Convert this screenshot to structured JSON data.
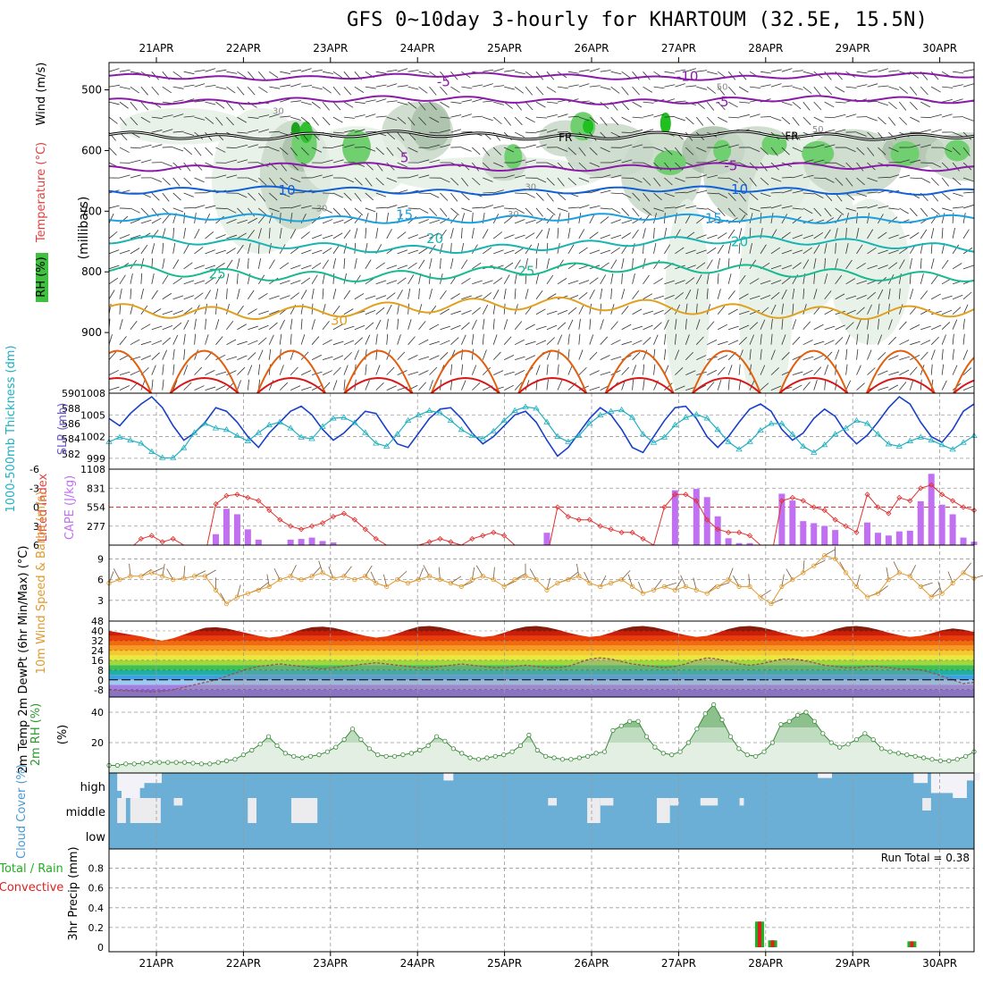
{
  "title": "GFS 0~10day 3-hourly for KHARTOUM (32.5E, 15.5N)",
  "dates": [
    "21APR",
    "22APR",
    "23APR",
    "24APR",
    "25APR",
    "26APR",
    "27APR",
    "28APR",
    "29APR",
    "30APR"
  ],
  "colors": {
    "purple": "#8a1aa8",
    "blue": "#1060d8",
    "sky": "#1a9fe0",
    "teal": "#18b4b4",
    "seagreen": "#18b890",
    "gold": "#e0a020",
    "orange": "#e06010",
    "red": "#d81818",
    "cape": "#c070f0",
    "li": "#e03030",
    "wind10": "#e09a30",
    "rh2": "#3a8a3a",
    "cloud": "#6baed6",
    "precip_total": "#20b020",
    "precip_conv": "#e02020",
    "slp": "#1a40c8",
    "thick": "#20b0c0"
  },
  "panel1": {
    "ylabels": [
      "Wind (m/s)",
      "Temperature (°C)",
      "(millibars)",
      "RH (%)"
    ],
    "yticks": [
      500,
      600,
      700,
      800,
      900,
      1000
    ],
    "isotherm_labels": [
      {
        "text": "-10",
        "t": 6.1,
        "p": 478
      },
      {
        "text": "-5",
        "t": 3.3,
        "p": 487
      },
      {
        "text": "-5",
        "t": 6.5,
        "p": 520
      },
      {
        "text": "5",
        "t": 2.85,
        "p": 612
      },
      {
        "text": "-5",
        "t": 6.6,
        "p": 625
      },
      {
        "text": "10",
        "t": 1.5,
        "p": 666
      },
      {
        "text": "10",
        "t": 6.7,
        "p": 664
      },
      {
        "text": "15",
        "t": 2.85,
        "p": 706
      },
      {
        "text": "15",
        "t": 6.4,
        "p": 712
      },
      {
        "text": "20",
        "t": 3.2,
        "p": 745
      },
      {
        "text": "20",
        "t": 6.7,
        "p": 750
      },
      {
        "text": "25",
        "t": 0.7,
        "p": 803
      },
      {
        "text": "25",
        "t": 4.25,
        "p": 799
      },
      {
        "text": "30",
        "t": 2.1,
        "p": 880
      }
    ],
    "fr_labels": [
      {
        "text": "FR",
        "t": 4.7,
        "p": 577
      },
      {
        "text": "FR",
        "t": 7.3,
        "p": 575
      }
    ],
    "rh_labels": [
      "30",
      "50"
    ]
  },
  "panel2": {
    "ylabel_thick": "1000-500mb Thickness (dm)",
    "ylabel_slp": "SLP (mb)",
    "thick_ticks": [
      "590",
      "588",
      "586",
      "584",
      "582"
    ],
    "slp_ticks": [
      "1008",
      "1005",
      "1002",
      "999"
    ],
    "slp": [
      1004.5,
      1003.5,
      1005.2,
      1006.5,
      1007.5,
      1006,
      1003.5,
      1001.5,
      1002.5,
      1004,
      1006,
      1005.5,
      1004,
      1002,
      1000.5,
      1002.5,
      1004,
      1005.5,
      1006.2,
      1005,
      1003,
      1001.5,
      1002.5,
      1004,
      1005.5,
      1005.2,
      1003,
      1001,
      1000.5,
      1002.5,
      1004.5,
      1005.8,
      1006,
      1004.5,
      1002.5,
      1001,
      1002,
      1003.5,
      1005,
      1005.5,
      1004,
      1001.5,
      999.3,
      1000.5,
      1002.5,
      1004.5,
      1006,
      1005,
      1003,
      1000.5,
      999.8,
      1002,
      1004.2,
      1006,
      1006.2,
      1004.5,
      1002,
      1000.5,
      1002,
      1004,
      1005.8,
      1006.5,
      1005.5,
      1003,
      1001.5,
      1002.5,
      1004.5,
      1005.8,
      1004.8,
      1002.5,
      1001,
      1002.2,
      1004,
      1006,
      1007.5,
      1006.5,
      1004,
      1002,
      1001.2,
      1003,
      1005.5,
      1006.5
    ],
    "thickness": [
      583.6,
      584.2,
      583.8,
      583.4,
      582.3,
      581.5,
      581.5,
      582.8,
      584.8,
      586.0,
      585.4,
      585.2,
      584.4,
      583.7,
      584.8,
      585.8,
      586.2,
      585.4,
      584.2,
      584.0,
      585.6,
      586.7,
      586.8,
      586.1,
      584.8,
      583.4,
      583.0,
      584.6,
      586.4,
      587.1,
      587.7,
      587.4,
      586.4,
      585.2,
      584.4,
      584.0,
      585.0,
      586.4,
      587.7,
      588.2,
      588.0,
      586.2,
      584.3,
      583.6,
      584.4,
      586.0,
      587.1,
      587.6,
      587.8,
      586.8,
      584.6,
      583.5,
      584.2,
      585.8,
      586.8,
      587.2,
      586.7,
      585.2,
      583.6,
      582.6,
      583.6,
      585.1,
      586.0,
      586.0,
      584.6,
      583.0,
      582.2,
      583.2,
      584.6,
      585.4,
      586.4,
      586.0,
      584.6,
      583.3,
      583.0,
      583.7,
      584.2,
      583.8,
      583.2,
      582.6,
      583.5,
      584.4
    ]
  },
  "panel3": {
    "ylabel_li": "Lifted Index",
    "ylabel_cape": "CAPE (J/kg)",
    "li_ticks": [
      "-6",
      "-3",
      "0",
      "3",
      "6"
    ],
    "cape_ticks": [
      "1108",
      "831",
      "554",
      "277"
    ],
    "li": [
      8.5,
      8,
      6.5,
      5,
      4.5,
      5.5,
      5,
      6,
      7,
      7.5,
      -0.5,
      -1.8,
      -2,
      -1.5,
      -1,
      0.5,
      2,
      3,
      3.5,
      3,
      2.5,
      1.5,
      1,
      2,
      3.5,
      5,
      6,
      6.5,
      6.5,
      6,
      5.5,
      5,
      5.5,
      6,
      5,
      4.5,
      4,
      4.5,
      6,
      8,
      8,
      8,
      0,
      1.5,
      2,
      2,
      3,
      3.5,
      4,
      4,
      5,
      6,
      0,
      -2,
      -2,
      -1,
      2,
      3.5,
      4,
      4,
      4.5,
      6,
      8,
      -1,
      -1.5,
      -1,
      0,
      0.5,
      2,
      3,
      4,
      -2,
      0,
      1,
      -1.5,
      -1,
      -3,
      -3.5,
      -2,
      -1,
      0,
      0.5
    ],
    "cape": [
      0,
      0,
      0,
      0,
      0,
      0,
      0,
      0,
      0,
      0,
      160,
      530,
      450,
      230,
      80,
      0,
      0,
      80,
      90,
      110,
      60,
      40,
      0,
      0,
      0,
      0,
      0,
      0,
      0,
      0,
      0,
      0,
      0,
      0,
      0,
      0,
      0,
      0,
      0,
      0,
      0,
      180,
      0,
      0,
      0,
      0,
      0,
      0,
      0,
      0,
      0,
      0,
      0,
      800,
      0,
      820,
      700,
      420,
      100,
      30,
      30,
      0,
      0,
      750,
      650,
      350,
      320,
      280,
      220,
      0,
      0,
      330,
      180,
      140,
      200,
      210,
      640,
      1040,
      590,
      450,
      110,
      50
    ]
  },
  "panel4": {
    "ylabel": "10m Wind Speed & Barbs (m/s)",
    "yticks": [
      "9",
      "6",
      "3"
    ],
    "speed": [
      5.5,
      6,
      6.5,
      6.5,
      7,
      6.5,
      6,
      6.2,
      6.5,
      6.5,
      4.5,
      2.5,
      3.5,
      4,
      4.5,
      5,
      6,
      6.5,
      6,
      6.5,
      7,
      6.2,
      6.5,
      6,
      6.5,
      5.5,
      5,
      6,
      5.5,
      6,
      6.5,
      6,
      5.5,
      5,
      6,
      6.5,
      6,
      5,
      6,
      6.5,
      6,
      4.5,
      5.5,
      6,
      6.5,
      5.5,
      5,
      5.5,
      6,
      5,
      4,
      4.5,
      5,
      4.5,
      5,
      4.5,
      4,
      5,
      6,
      5,
      5,
      3.5,
      2.5,
      5,
      6,
      7,
      8,
      9.5,
      9,
      7,
      5,
      3.5,
      4,
      6,
      7,
      6.5,
      5,
      3.5,
      4,
      5.5,
      7,
      6.2
    ]
  },
  "panel5": {
    "ylabel": "2m Temp 2m DewPt (6hr Min/Max) (°C)",
    "yticks": [
      "48",
      "40",
      "32",
      "24",
      "16",
      "8",
      "0",
      "-8"
    ],
    "tmax": [
      40,
      38.5,
      37,
      35.5,
      33.5,
      32,
      34,
      37,
      40,
      42.5,
      43,
      42,
      40,
      38,
      36,
      34.5,
      35.5,
      38,
      41,
      43,
      43.5,
      42.5,
      40.5,
      38,
      36,
      34.5,
      35.5,
      38,
      41,
      43.5,
      44,
      43,
      41,
      38.5,
      36.5,
      35,
      36,
      38.5,
      41.5,
      43.5,
      44,
      43,
      41,
      38.5,
      36.5,
      35,
      36,
      38.5,
      41.5,
      43.5,
      44,
      43,
      41,
      38.5,
      36.5,
      35,
      36,
      38.5,
      41.5,
      43.5,
      44,
      43,
      41,
      38.5,
      36.5,
      35,
      36,
      38.5,
      41.5,
      43.5,
      44,
      43,
      41,
      38.5,
      36.5,
      35,
      36,
      38,
      40.5,
      42,
      41,
      39,
      37,
      36
    ],
    "dew": [
      -8,
      -8.5,
      -9,
      -9.5,
      -10,
      -9.5,
      -8,
      -6,
      -4,
      -2,
      0,
      3,
      6,
      9,
      11,
      12,
      13,
      12,
      11,
      10,
      9,
      10,
      11,
      12,
      13,
      14,
      13,
      12,
      11,
      10,
      10,
      11,
      12,
      13,
      12,
      11,
      10,
      10,
      11,
      12,
      11,
      10,
      10,
      11,
      14,
      17,
      18,
      17,
      15,
      13,
      12,
      11,
      10,
      11,
      13,
      16,
      18,
      17,
      15,
      13,
      12,
      13,
      15,
      17,
      17,
      16,
      14,
      12,
      11,
      10,
      10,
      11,
      11,
      10,
      9,
      9,
      8,
      6,
      3,
      0,
      -3,
      -2
    ]
  },
  "panel6": {
    "ylabel": "2m RH (%)",
    "yticks": [
      "40",
      "20"
    ],
    "rh": [
      5,
      5,
      6,
      6,
      6.5,
      7,
      7,
      7,
      7,
      7,
      6.5,
      6,
      6,
      7,
      8,
      9,
      12,
      15,
      19,
      24,
      18,
      13,
      11,
      10,
      11,
      12,
      14,
      17,
      22,
      29,
      22,
      16,
      12,
      11,
      11,
      12,
      13,
      15,
      18,
      24,
      21,
      16,
      13,
      10,
      9,
      10,
      11,
      12,
      14,
      18,
      25,
      15,
      11,
      10,
      9,
      9,
      10,
      11,
      13,
      14,
      28,
      31,
      34,
      34,
      24,
      17,
      13,
      12,
      14,
      20,
      29,
      39,
      45,
      35,
      24,
      16,
      12,
      11,
      14,
      20,
      32,
      34,
      38,
      40,
      34,
      26,
      20,
      17,
      19,
      22,
      26,
      22,
      16,
      14,
      13,
      12,
      11,
      10,
      9,
      8,
      8,
      9,
      11,
      14
    ]
  },
  "panel7": {
    "ylabel": "Cloud Cover (%)",
    "yticks": [
      "high",
      "middle",
      "low"
    ]
  },
  "panel8": {
    "ylabel_total": "Total / Rain",
    "ylabel_conv": "Convective",
    "ylabel_axis": "3hr Precip (mm)",
    "yticks": [
      "0.8",
      "0.6",
      "0.4",
      "0.2",
      "0"
    ],
    "run_total": "Run Total = 0.38",
    "bars": [
      {
        "t": 6.93,
        "total": 0.26,
        "conv": 0.26
      },
      {
        "t": 7.08,
        "total": 0.07,
        "conv": 0.07
      },
      {
        "t": 8.68,
        "total": 0.06,
        "conv": 0.06
      }
    ]
  }
}
